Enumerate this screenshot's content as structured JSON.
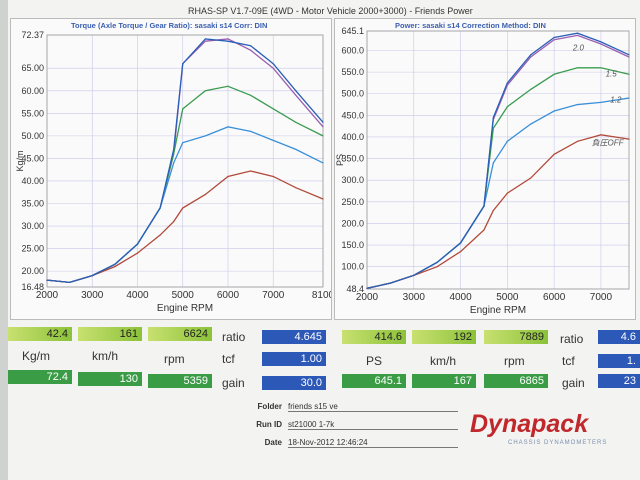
{
  "header": {
    "title": "RHAS-SP V1.7-09E  (4WD - Motor Vehicle 2000+3000) - Friends Power"
  },
  "left_panel": {
    "title": "Torque (Axle Torque / Gear Ratio): sasaki s14     Corr: DIN"
  },
  "right_panel": {
    "title": "Power: sasaki s14     Correction Method: DIN"
  },
  "colors": {
    "run_2_0": "#9a5fb0",
    "run_1_5": "#3a9c50",
    "run_1_2": "#3a8fd8",
    "boost_off": "#b24a3a",
    "run_extra": "#2a5fb8"
  },
  "chart_data": [
    {
      "type": "line",
      "xlabel": "Engine RPM",
      "ylabel": "Kg/m",
      "xlim": [
        2000,
        8100
      ],
      "ylim": [
        16.48,
        72.37
      ],
      "xticks": [
        "2000",
        "3000",
        "4000",
        "5000",
        "6000",
        "7000",
        "8100"
      ],
      "yticks": [
        "72.37",
        "65.00",
        "60.00",
        "55.00",
        "50.00",
        "45.00",
        "40.00",
        "35.00",
        "30.00",
        "25.00",
        "20.00",
        "16.48"
      ],
      "x": [
        2000,
        2500,
        3000,
        3500,
        4000,
        4500,
        4800,
        5000,
        5500,
        6000,
        6500,
        7000,
        7500,
        8100
      ],
      "series": [
        {
          "values": [
            18,
            17.5,
            19,
            21.5,
            26,
            34,
            46,
            66,
            71,
            71.5,
            69,
            65,
            59,
            52
          ]
        },
        {
          "values": [
            18,
            17.5,
            19,
            21.5,
            26,
            34,
            46,
            56,
            60,
            61,
            59,
            56,
            53,
            50
          ]
        },
        {
          "values": [
            18,
            17.5,
            19,
            21.5,
            26,
            34,
            44,
            48.5,
            50,
            52,
            51,
            49,
            47,
            44
          ]
        },
        {
          "values": [
            18,
            17.5,
            19,
            21,
            24,
            28,
            31,
            34,
            37,
            41,
            42.2,
            41,
            38.5,
            36
          ]
        },
        {
          "values": [
            18,
            17.5,
            19,
            21.5,
            26,
            34,
            47,
            66,
            71.5,
            71,
            70,
            66,
            60,
            53
          ]
        }
      ]
    },
    {
      "type": "line",
      "xlabel": "Engine RPM",
      "ylabel": "PS",
      "xlim": [
        2000,
        7600
      ],
      "ylim": [
        48.4,
        645.1
      ],
      "xticks": [
        "2000",
        "3000",
        "4000",
        "5000",
        "6000",
        "7000"
      ],
      "yticks": [
        "645.1",
        "600.0",
        "550.0",
        "500.0",
        "450.0",
        "400.0",
        "350.0",
        "300.0",
        "250.0",
        "200.0",
        "150.0",
        "100.0",
        "48.4"
      ],
      "x": [
        2000,
        2500,
        3000,
        3500,
        4000,
        4500,
        4700,
        5000,
        5500,
        6000,
        6500,
        7000,
        7600
      ],
      "series": [
        {
          "values": [
            50,
            62,
            80,
            110,
            155,
            240,
            440,
            520,
            585,
            625,
            635,
            615,
            585
          ]
        },
        {
          "values": [
            50,
            62,
            80,
            110,
            155,
            240,
            420,
            470,
            510,
            545,
            560,
            560,
            545
          ]
        },
        {
          "values": [
            50,
            62,
            80,
            110,
            155,
            240,
            340,
            390,
            430,
            460,
            475,
            480,
            490
          ]
        },
        {
          "values": [
            50,
            62,
            80,
            100,
            135,
            185,
            230,
            270,
            305,
            360,
            390,
            405,
            395
          ]
        },
        {
          "values": [
            50,
            62,
            80,
            110,
            155,
            240,
            445,
            525,
            590,
            630,
            640,
            620,
            590
          ]
        }
      ],
      "annotations": [
        "2.0",
        "1.5",
        "1.2",
        "負圧OFF"
      ]
    }
  ],
  "left_stats": {
    "ratio_label": "ratio",
    "tcf_label": "tcf",
    "gain_label": "gain",
    "kgm_label": "Kg/m",
    "kmh_label": "km/h",
    "rpm_label": "rpm",
    "val1": "42.4",
    "val2": "161",
    "val3": "6624",
    "ratio": "4.645",
    "tcf": "1.00",
    "max1": "72.4",
    "max2": "130",
    "max3": "5359",
    "gain": "30.0"
  },
  "right_stats": {
    "ratio_label": "ratio",
    "tcf_label": "tcf",
    "gain_label": "gain",
    "ps_label": "PS",
    "kmh_label": "km/h",
    "rpm_label": "rpm",
    "val1": "414.6",
    "val2": "192",
    "val3": "7889",
    "ratio": "4.6",
    "tcf": "1.",
    "max1": "645.1",
    "max2": "167",
    "max3": "6865",
    "gain": "23"
  },
  "footer": {
    "folder_label": "Folder",
    "folder": "friends s15 ve",
    "runid_label": "Run ID",
    "runid": "st21000 1-7k",
    "date_label": "Date",
    "date": "18-Nov-2012   12:46:24"
  },
  "logo": {
    "text": "Dynapack",
    "sub": "CHASSIS DYNAMOMETERS"
  }
}
